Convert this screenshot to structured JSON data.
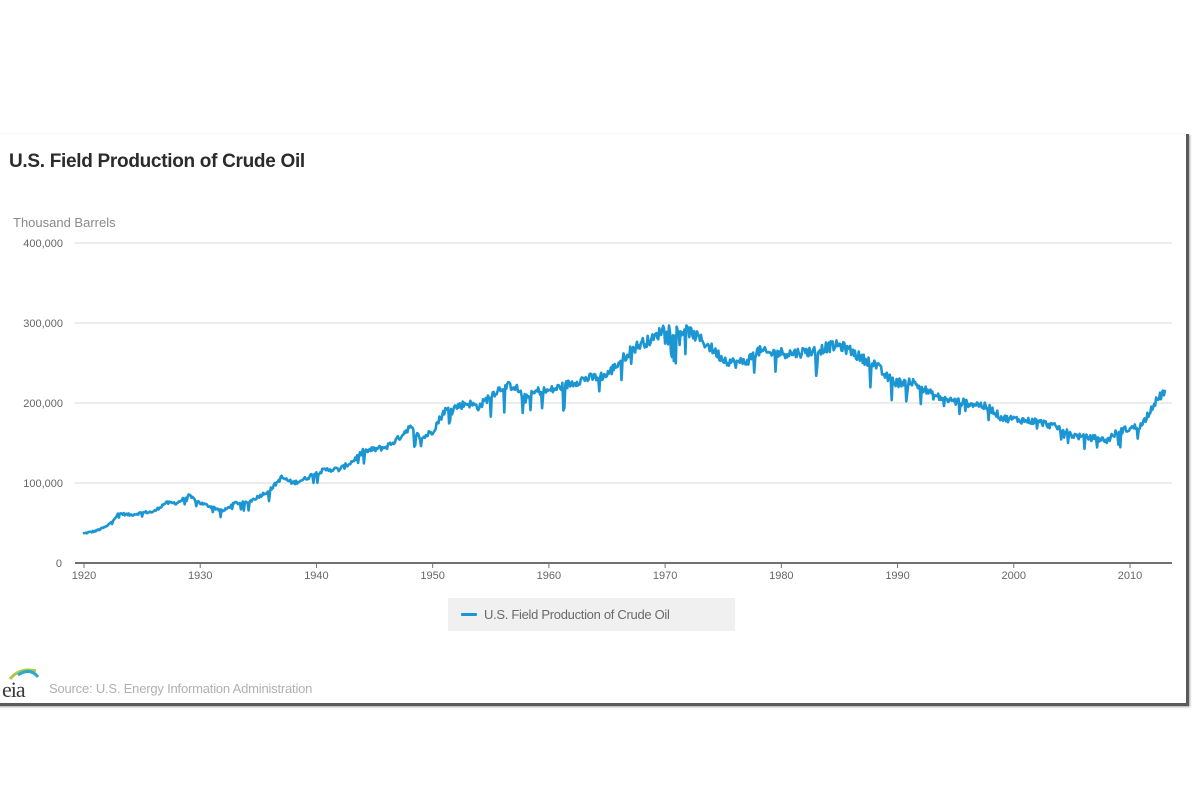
{
  "chart_data": {
    "type": "line",
    "title": "U.S. Field Production of Crude Oil",
    "ylabel": "Thousand Barrels",
    "xlabel": "",
    "ylim": [
      0,
      400000
    ],
    "xlim": [
      1919.7,
      2013.5
    ],
    "yticks": [
      0,
      100000,
      200000,
      300000,
      400000
    ],
    "ytick_labels": [
      "0",
      "100,000",
      "200,000",
      "300,000",
      "400,000"
    ],
    "xticks": [
      1920,
      1930,
      1940,
      1950,
      1960,
      1970,
      1980,
      1990,
      2000,
      2010
    ],
    "xtick_labels": [
      "1920",
      "1930",
      "1940",
      "1950",
      "1960",
      "1970",
      "1980",
      "1990",
      "2000",
      "2010"
    ],
    "grid": true,
    "legend": "bottom-center",
    "series": [
      {
        "name": "U.S. Field Production of Crude Oil",
        "color": "#1b96d2",
        "x": [
          1920,
          1921,
          1922,
          1923,
          1924,
          1925,
          1926,
          1927,
          1928,
          1929,
          1930,
          1931,
          1932,
          1933,
          1934,
          1935,
          1936,
          1937,
          1938,
          1939,
          1940,
          1941,
          1942,
          1943,
          1944,
          1945,
          1946,
          1947,
          1948,
          1949,
          1950,
          1951,
          1952,
          1953,
          1954,
          1955,
          1956,
          1957,
          1958,
          1959,
          1960,
          1961,
          1962,
          1963,
          1964,
          1965,
          1966,
          1967,
          1968,
          1969,
          1970,
          1971,
          1972,
          1973,
          1974,
          1975,
          1976,
          1977,
          1978,
          1979,
          1980,
          1981,
          1982,
          1983,
          1984,
          1985,
          1986,
          1987,
          1988,
          1989,
          1990,
          1991,
          1992,
          1993,
          1994,
          1995,
          1996,
          1997,
          1998,
          1999,
          2000,
          2001,
          2002,
          2003,
          2004,
          2005,
          2006,
          2007,
          2008,
          2009,
          2010,
          2011,
          2012,
          2013
        ],
        "values": [
          37000,
          40000,
          46000,
          62000,
          60000,
          63000,
          64000,
          75000,
          75000,
          84000,
          75000,
          70000,
          65000,
          75000,
          75000,
          83000,
          91000,
          107000,
          100000,
          105000,
          113000,
          117000,
          117000,
          126000,
          139000,
          142000,
          145000,
          155000,
          170000,
          155000,
          165000,
          190000,
          195000,
          200000,
          195000,
          210000,
          220000,
          222000,
          205000,
          215000,
          215000,
          220000,
          225000,
          230000,
          232000,
          235000,
          250000,
          265000,
          275000,
          280000,
          295000,
          290000,
          290000,
          280000,
          268000,
          255000,
          250000,
          252000,
          265000,
          262000,
          263000,
          262000,
          264000,
          265000,
          270000,
          272000,
          265000,
          255000,
          250000,
          233000,
          225000,
          228000,
          220000,
          210000,
          205000,
          202000,
          200000,
          198000,
          193000,
          181000,
          180000,
          178000,
          177000,
          173000,
          168000,
          160000,
          157000,
          156000,
          153000,
          165000,
          168000,
          172000,
          198000,
          215000
        ]
      }
    ]
  },
  "legend": {
    "label": "U.S. Field Production of Crude Oil"
  },
  "footer": {
    "logo_text": "eia",
    "source": "Source: U.S. Energy Information Administration"
  }
}
